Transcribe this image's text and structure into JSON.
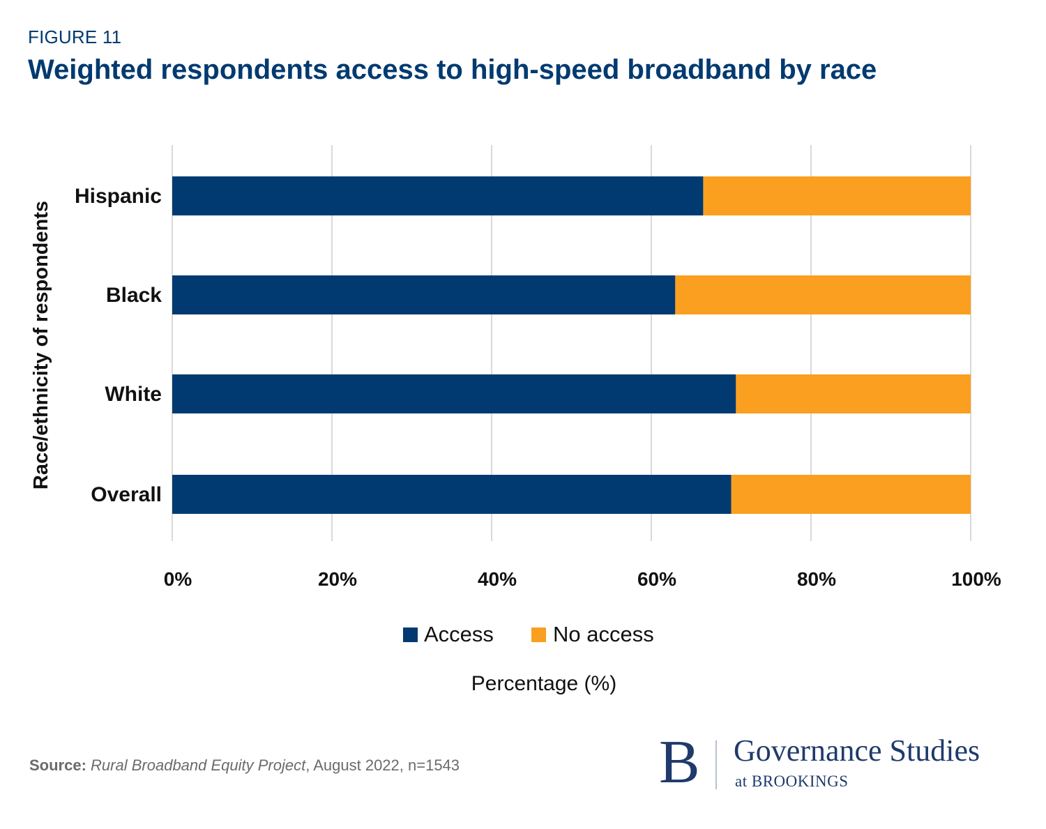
{
  "figure_label": "FIGURE 11",
  "title": "Weighted respondents access to high-speed broadband by race",
  "source": {
    "prefix": "Source:",
    "publication": "Rural Broadband Equity Project",
    "detail": ", August 2022, n=1543"
  },
  "logo": {
    "mark": "B",
    "name": "Governance Studies",
    "sub": "at BROOKINGS"
  },
  "colors": {
    "access": "#003a70",
    "no_access": "#fa9f1f",
    "grid": "#d9d9d9",
    "title": "#003a70"
  },
  "chart_data": {
    "type": "bar",
    "orientation": "horizontal",
    "stacked": true,
    "title": "Weighted respondents access to high-speed broadband by race",
    "xlabel": "Percentage (%)",
    "ylabel": "Race/ethnicity of respondents",
    "categories": [
      "Hispanic",
      "Black",
      "White",
      "Overall"
    ],
    "series": [
      {
        "name": "Access",
        "color": "#003a70",
        "values": [
          66.5,
          63.0,
          70.6,
          70.0
        ]
      },
      {
        "name": "No access",
        "color": "#fa9f1f",
        "values": [
          33.5,
          37.0,
          29.4,
          30.0
        ]
      }
    ],
    "xlim": [
      0,
      100
    ],
    "xticks": [
      0,
      20,
      40,
      60,
      80,
      100
    ],
    "xtick_labels": [
      "0%",
      "20%",
      "40%",
      "60%",
      "80%",
      "100%"
    ],
    "grid": "vertical",
    "legend": "bottom"
  }
}
